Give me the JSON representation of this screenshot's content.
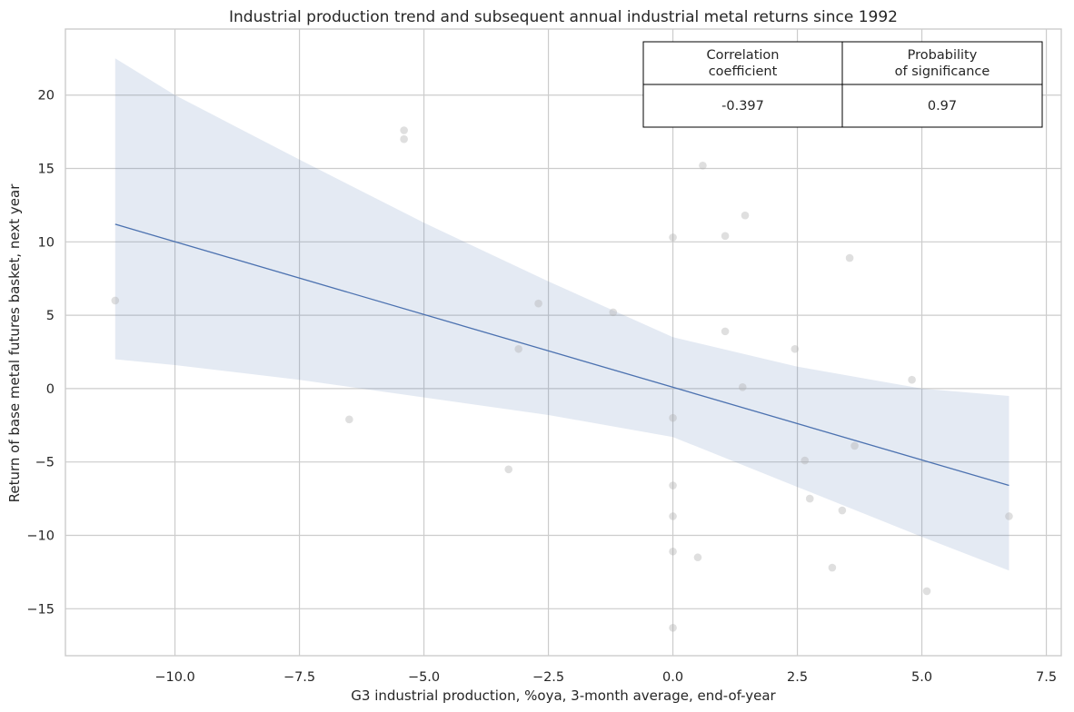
{
  "chart_data": {
    "type": "scatter",
    "title": "Industrial production trend and subsequent annual industrial metal returns since 1992",
    "xlabel": "G3 industrial production, %oya, 3-month average, end-of-year",
    "ylabel": "Return of base metal futures basket, next year",
    "xlim": [
      -12.2,
      7.8
    ],
    "ylim": [
      -18.2,
      24.5
    ],
    "xticks": [
      -10.0,
      -7.5,
      -5.0,
      -2.5,
      0.0,
      2.5,
      5.0,
      7.5
    ],
    "xtick_labels": [
      "−10.0",
      "−7.5",
      "−5.0",
      "−2.5",
      "0.0",
      "2.5",
      "5.0",
      "7.5"
    ],
    "yticks": [
      -15,
      -10,
      -5,
      0,
      5,
      10,
      15,
      20
    ],
    "ytick_labels": [
      "−15",
      "−10",
      "−5",
      "0",
      "5",
      "10",
      "15",
      "20"
    ],
    "grid": true,
    "points": [
      {
        "x": -11.2,
        "y": 6.0
      },
      {
        "x": -6.5,
        "y": -2.1
      },
      {
        "x": -5.4,
        "y": 17.6
      },
      {
        "x": -5.4,
        "y": 17.0
      },
      {
        "x": -3.3,
        "y": -5.5
      },
      {
        "x": -3.1,
        "y": 2.7
      },
      {
        "x": -2.7,
        "y": 5.8
      },
      {
        "x": -1.2,
        "y": 5.2
      },
      {
        "x": 0.0,
        "y": 10.3
      },
      {
        "x": 0.0,
        "y": -2.0
      },
      {
        "x": 0.0,
        "y": -6.6
      },
      {
        "x": 0.0,
        "y": -8.7
      },
      {
        "x": 0.0,
        "y": -11.1
      },
      {
        "x": 0.0,
        "y": -16.3
      },
      {
        "x": 0.5,
        "y": -11.5
      },
      {
        "x": 0.6,
        "y": 15.2
      },
      {
        "x": 1.05,
        "y": 10.4
      },
      {
        "x": 1.05,
        "y": 3.9
      },
      {
        "x": 1.4,
        "y": 0.1
      },
      {
        "x": 1.45,
        "y": 11.8
      },
      {
        "x": 2.45,
        "y": 2.7
      },
      {
        "x": 2.65,
        "y": -4.9
      },
      {
        "x": 2.75,
        "y": -7.5
      },
      {
        "x": 3.2,
        "y": -12.2
      },
      {
        "x": 3.4,
        "y": -8.3
      },
      {
        "x": 3.55,
        "y": 8.9
      },
      {
        "x": 3.65,
        "y": -3.9
      },
      {
        "x": 4.8,
        "y": 0.6
      },
      {
        "x": 5.1,
        "y": -13.8
      },
      {
        "x": 6.75,
        "y": -8.7
      }
    ],
    "regression": {
      "x": [
        -11.2,
        6.75
      ],
      "y": [
        11.2,
        -6.6
      ]
    },
    "confidence_band": {
      "x": [
        -11.2,
        -10.0,
        -7.5,
        -5.0,
        -2.5,
        0.0,
        2.5,
        5.0,
        6.75
      ],
      "upper": [
        22.5,
        20.0,
        15.6,
        11.3,
        7.3,
        3.5,
        1.5,
        0.0,
        -0.5
      ],
      "lower": [
        2.0,
        1.6,
        0.6,
        -0.6,
        -1.8,
        -3.3,
        -6.7,
        -10.1,
        -12.4
      ]
    },
    "table": {
      "headers": [
        "Correlation\ncoefficient",
        "Probability\nof significance"
      ],
      "values": [
        "-0.397",
        "0.97"
      ]
    }
  }
}
